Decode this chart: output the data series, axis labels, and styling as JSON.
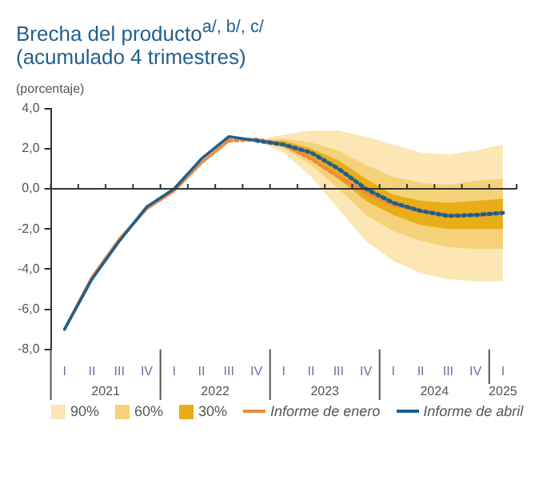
{
  "chart_data": {
    "type": "line",
    "title": "Brecha del producto$^{a/, b/, c/}$",
    "subtitle": "(acumulado 4 trimestres)",
    "ylabel": "(porcentaje)",
    "categories": [
      "I",
      "II",
      "III",
      "IV",
      "I",
      "II",
      "III",
      "IV",
      "I",
      "II",
      "III",
      "IV",
      "I",
      "II",
      "III",
      "IV",
      "I"
    ],
    "annotations": [
      "2021",
      "2022",
      "2023",
      "2024",
      "2025"
    ],
    "series": [
      {
        "name": "90%",
        "type": "area",
        "color": "#fbe6b4",
        "values": [
          null,
          null,
          null,
          null,
          null,
          null,
          null,
          null,
          null,
          null,
          null,
          null,
          null,
          null,
          null,
          null,
          null
        ],
        "lower": [
          null,
          null,
          null,
          null,
          null,
          null,
          null,
          2.4,
          1.8,
          0.6,
          -1.0,
          -2.6,
          -3.6,
          -4.2,
          -4.5,
          -4.6,
          -4.6
        ],
        "upper": [
          null,
          null,
          null,
          null,
          null,
          null,
          null,
          2.4,
          2.7,
          2.9,
          2.9,
          2.6,
          2.2,
          1.8,
          1.7,
          1.9,
          2.2
        ]
      },
      {
        "name": "60%",
        "type": "area",
        "color": "#f5d27a",
        "values": [
          null,
          null,
          null,
          null,
          null,
          null,
          null,
          null,
          null,
          null,
          null,
          null,
          null,
          null,
          null,
          null,
          null
        ],
        "lower": [
          null,
          null,
          null,
          null,
          null,
          null,
          null,
          2.4,
          2.0,
          1.2,
          0.0,
          -1.3,
          -2.1,
          -2.6,
          -2.9,
          -3.0,
          -3.0
        ],
        "upper": [
          null,
          null,
          null,
          null,
          null,
          null,
          null,
          2.4,
          2.5,
          2.3,
          1.9,
          1.2,
          0.6,
          0.3,
          0.2,
          0.4,
          0.5
        ]
      },
      {
        "name": "30%",
        "type": "area",
        "color": "#e9ad18",
        "values": [
          null,
          null,
          null,
          null,
          null,
          null,
          null,
          null,
          null,
          null,
          null,
          null,
          null,
          null,
          null,
          null,
          null
        ],
        "lower": [
          null,
          null,
          null,
          null,
          null,
          null,
          null,
          2.4,
          2.2,
          1.5,
          0.5,
          -0.6,
          -1.3,
          -1.8,
          -2.0,
          -2.0,
          -2.0
        ],
        "upper": [
          null,
          null,
          null,
          null,
          null,
          null,
          null,
          2.4,
          2.4,
          2.0,
          1.4,
          0.5,
          -0.3,
          -0.6,
          -0.7,
          -0.6,
          -0.5
        ]
      },
      {
        "name": "Informe de enero",
        "type": "line",
        "color": "#f08a3c",
        "line_style": "solid",
        "values": [
          -7.0,
          -4.4,
          -2.5,
          -1.0,
          -0.1,
          1.3,
          2.4,
          null,
          null,
          null,
          null,
          null,
          null,
          null,
          null,
          null,
          null
        ]
      },
      {
        "type": "line",
        "color": "#f08a3c",
        "line_style": "dotted",
        "values": [
          null,
          null,
          null,
          null,
          null,
          null,
          2.4,
          2.45,
          2.2,
          1.5,
          0.6,
          -0.2,
          -0.8,
          -1.1,
          -1.3,
          -1.35,
          -1.2
        ]
      },
      {
        "name": "Informe de abril",
        "type": "line",
        "color": "#1f5f8f",
        "line_style": "solid",
        "values": [
          -7.0,
          -4.5,
          -2.6,
          -0.9,
          0.0,
          1.5,
          2.6,
          2.4,
          null,
          null,
          null,
          null,
          null,
          null,
          null,
          null,
          null
        ]
      },
      {
        "type": "line",
        "color": "#1f5f8f",
        "line_style": "dotted",
        "values": [
          null,
          null,
          null,
          null,
          null,
          null,
          null,
          2.4,
          2.2,
          1.8,
          1.0,
          0.0,
          -0.7,
          -1.1,
          -1.35,
          -1.3,
          -1.2
        ]
      }
    ],
    "ylim": [
      -8,
      4
    ],
    "yticks": [
      {
        "value": -8,
        "label": "-8,0"
      },
      {
        "value": -6,
        "label": "-6,0"
      },
      {
        "value": -4,
        "label": "-4,0"
      },
      {
        "value": -2,
        "label": "-2,0"
      },
      {
        "value": 0,
        "label": "0,0"
      },
      {
        "value": 2,
        "label": "2,0"
      },
      {
        "value": 4,
        "label": "4,0"
      }
    ],
    "ref_lines": [
      {
        "axis": "y",
        "value": 0,
        "color": "#333333"
      }
    ],
    "grid": false,
    "legend": "bottom",
    "marker": "none"
  }
}
